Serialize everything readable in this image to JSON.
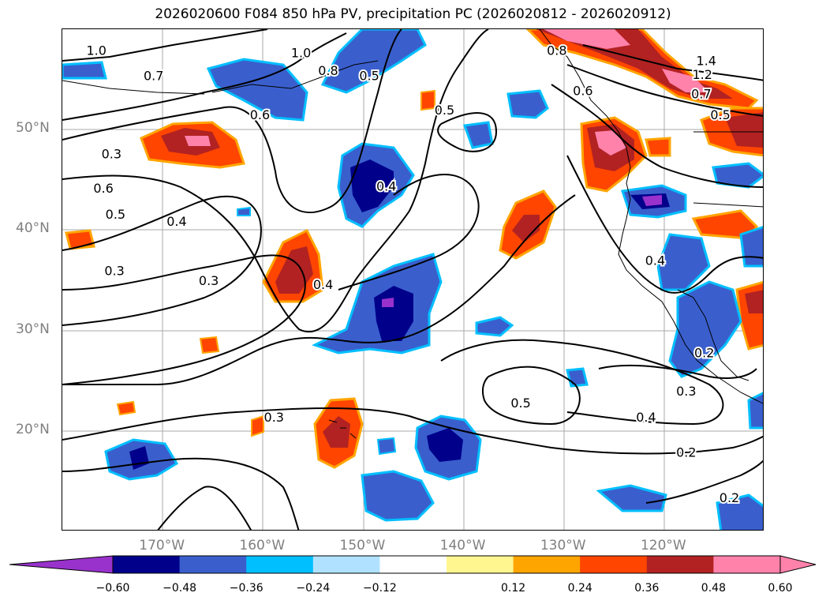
{
  "title": "2026020600 F084 850 hPa PV, precipitation PC (2026020812 - 2026020912)",
  "map": {
    "lon_range": [
      -180,
      -110
    ],
    "lat_range": [
      10,
      60
    ],
    "lat_ticks": [
      {
        "lat": 50,
        "label": "50°N"
      },
      {
        "lat": 40,
        "label": "40°N"
      },
      {
        "lat": 30,
        "label": "30°N"
      },
      {
        "lat": 20,
        "label": "20°N"
      }
    ],
    "lon_ticks": [
      {
        "lon": -170,
        "label": "170°W"
      },
      {
        "lon": -160,
        "label": "160°W"
      },
      {
        "lon": -150,
        "label": "150°W"
      },
      {
        "lon": -140,
        "label": "140°W"
      },
      {
        "lon": -130,
        "label": "130°W"
      },
      {
        "lon": -120,
        "label": "120°W"
      }
    ],
    "contour_labels": [
      {
        "text": "1.0",
        "lon": -176.6,
        "lat": 57.9
      },
      {
        "text": "1.0",
        "lon": -156.2,
        "lat": 57.7
      },
      {
        "text": "0.8",
        "lon": -153.5,
        "lat": 55.9
      },
      {
        "text": "0.5",
        "lon": -149.4,
        "lat": 55.4
      },
      {
        "text": "0.7",
        "lon": -170.9,
        "lat": 55.4
      },
      {
        "text": "0.6",
        "lon": -160.3,
        "lat": 51.5
      },
      {
        "text": "0.5",
        "lon": -141.9,
        "lat": 52.0
      },
      {
        "text": "0.3",
        "lon": -175.1,
        "lat": 47.6
      },
      {
        "text": "0.6",
        "lon": -175.9,
        "lat": 44.2
      },
      {
        "text": "0.5",
        "lon": -174.7,
        "lat": 41.6
      },
      {
        "text": "0.4",
        "lon": -147.7,
        "lat": 44.4
      },
      {
        "text": "0.4",
        "lon": -168.6,
        "lat": 40.9
      },
      {
        "text": "0.3",
        "lon": -174.8,
        "lat": 36.0
      },
      {
        "text": "0.3",
        "lon": -165.4,
        "lat": 35.0
      },
      {
        "text": "0.4",
        "lon": -154.0,
        "lat": 34.6
      },
      {
        "text": "0.8",
        "lon": -130.7,
        "lat": 57.9
      },
      {
        "text": "1.4",
        "lon": -115.8,
        "lat": 56.9
      },
      {
        "text": "1.2",
        "lon": -116.2,
        "lat": 55.5
      },
      {
        "text": "0.6",
        "lon": -128.1,
        "lat": 53.9
      },
      {
        "text": "0.7",
        "lon": -116.3,
        "lat": 53.6
      },
      {
        "text": "0.5",
        "lon": -114.4,
        "lat": 51.5
      },
      {
        "text": "0.4",
        "lon": -120.9,
        "lat": 37.0
      },
      {
        "text": "0.2",
        "lon": -116.0,
        "lat": 27.8
      },
      {
        "text": "0.3",
        "lon": -117.8,
        "lat": 24.0
      },
      {
        "text": "0.5",
        "lon": -134.3,
        "lat": 22.8
      },
      {
        "text": "0.4",
        "lon": -121.8,
        "lat": 21.4
      },
      {
        "text": "0.3",
        "lon": -158.9,
        "lat": 21.4
      },
      {
        "text": "0.2",
        "lon": -117.8,
        "lat": 17.9
      },
      {
        "text": "0.2",
        "lon": -113.5,
        "lat": 13.4
      }
    ]
  },
  "colorbar": {
    "tick_labels": [
      "−0.60",
      "−0.48",
      "−0.36",
      "−0.24",
      "−0.12",
      "0.12",
      "0.24",
      "0.36",
      "0.48",
      "0.60"
    ],
    "colors": {
      "under": "#9932cc",
      "n060": "#00008b",
      "n048": "#3a5fcd",
      "n036": "#00bfff",
      "n024": "#b0e2ff",
      "n012": "#ffffff",
      "p012": "#fff68f",
      "p024": "#ffa500",
      "p036": "#ff4500",
      "p048": "#b22222",
      "over": "#ff82ab"
    }
  }
}
